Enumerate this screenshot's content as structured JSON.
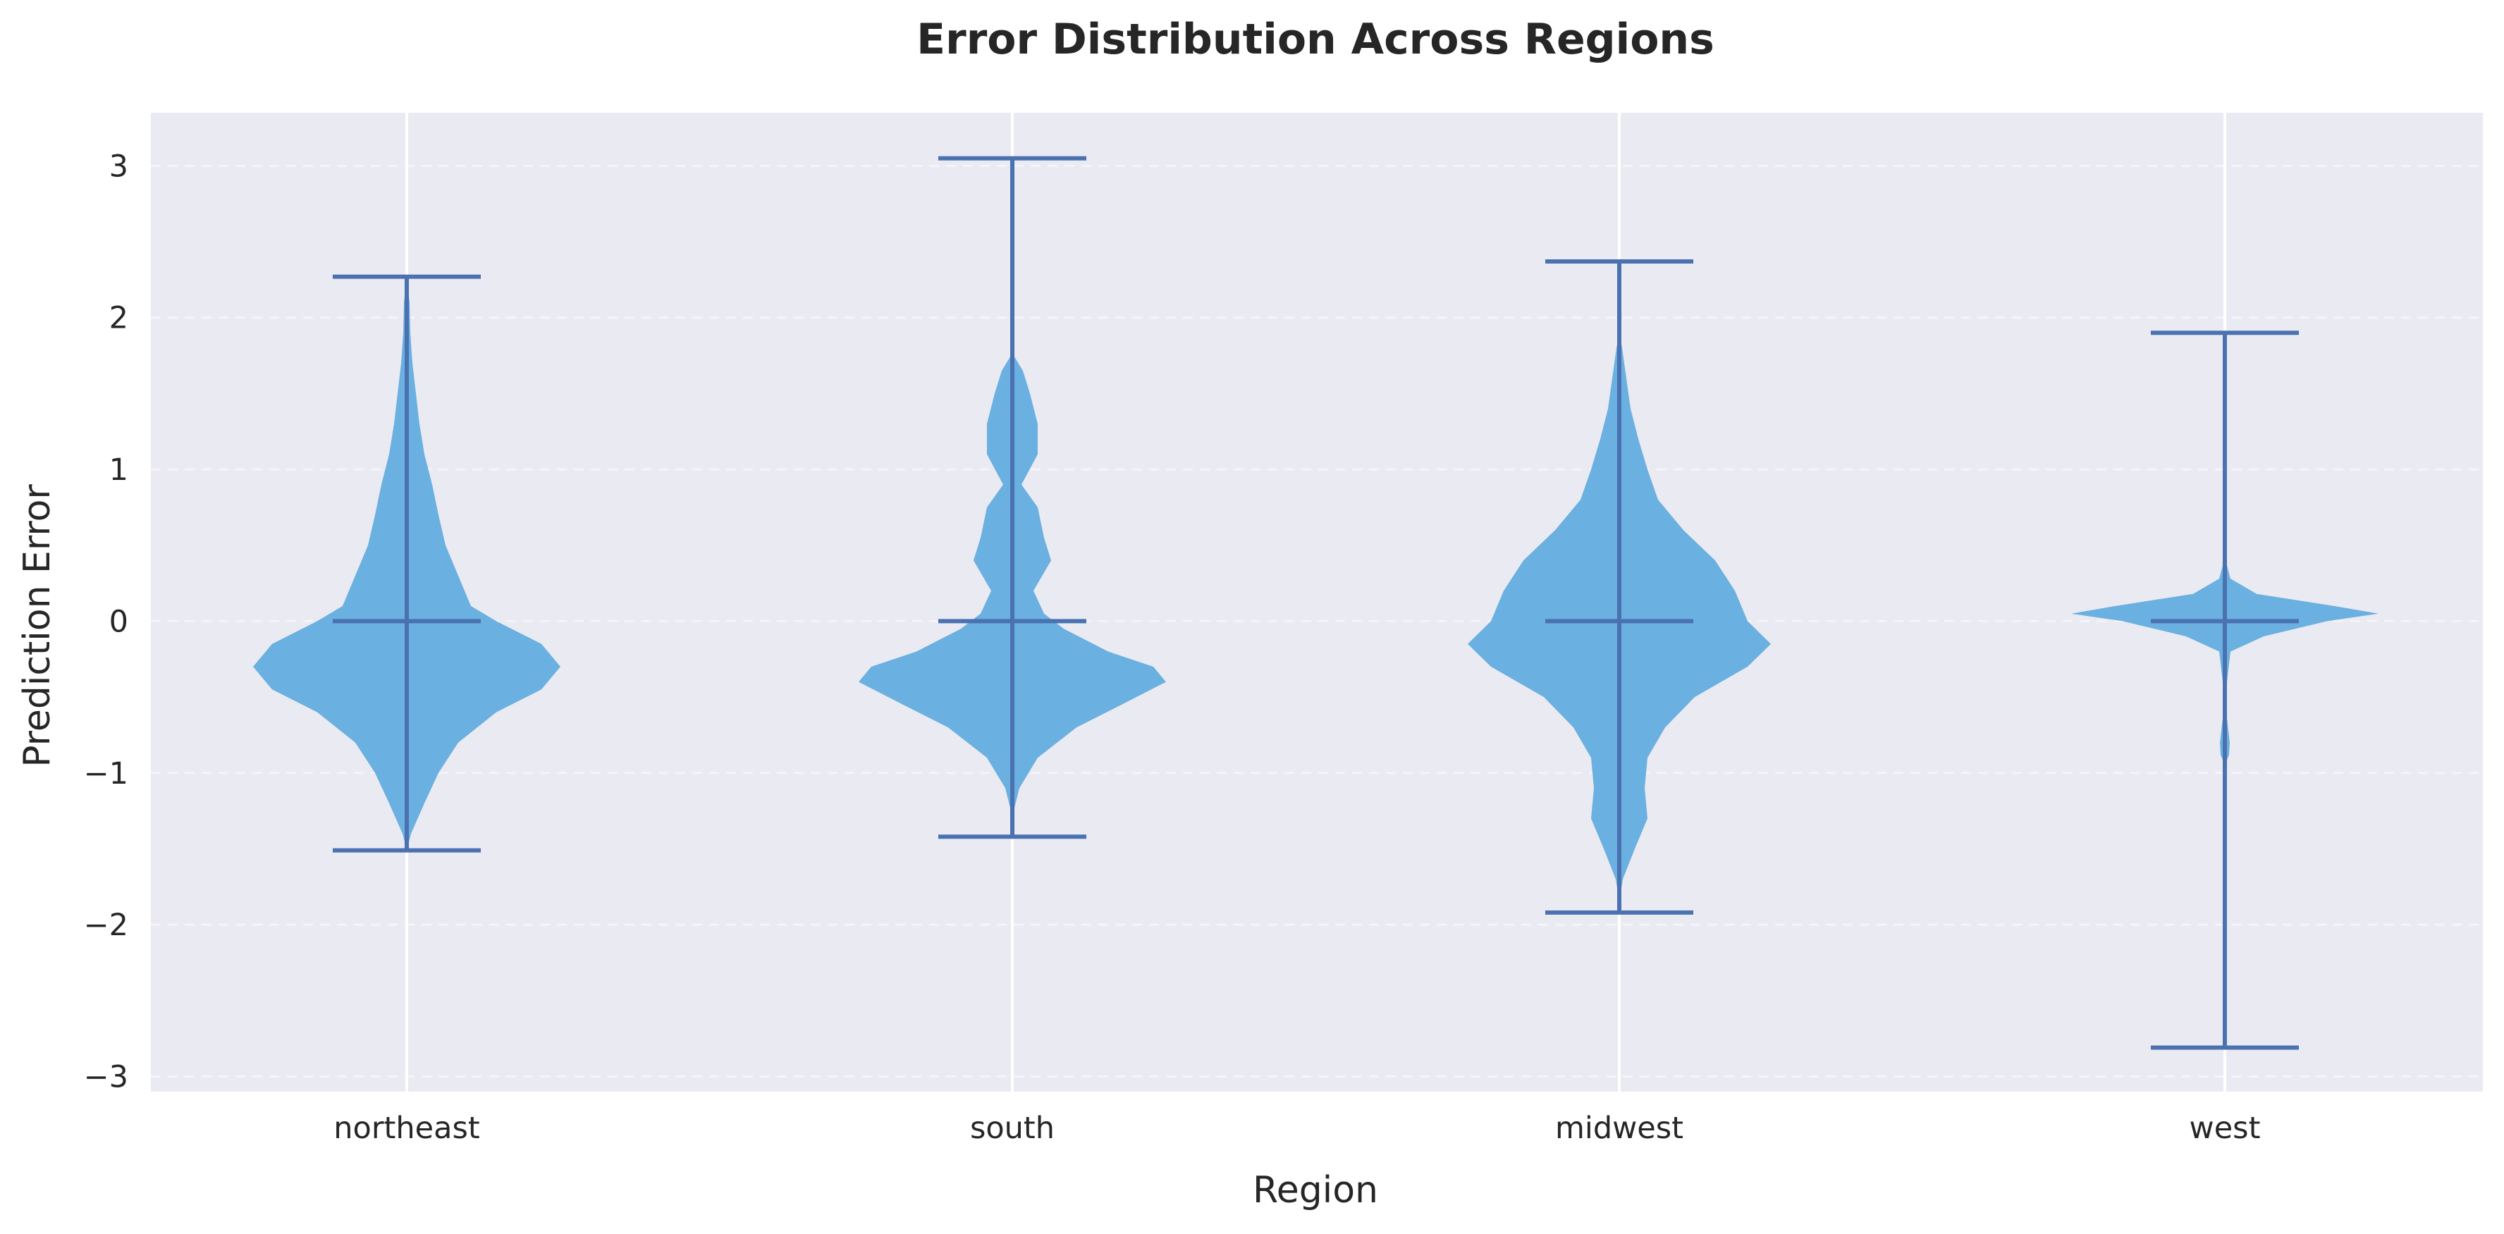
{
  "chart_data": {
    "type": "violin",
    "title": "Error Distribution Across Regions",
    "xlabel": "Region",
    "ylabel": "Prediction Error",
    "ylim": [
      -3.1,
      3.35
    ],
    "yticks": [
      3,
      2,
      1,
      0,
      -1,
      -2,
      -3
    ],
    "ytick_labels": [
      "3",
      "2",
      "1",
      "0",
      "−1",
      "−2",
      "−3"
    ],
    "grid": true,
    "categories": [
      "northeast",
      "south",
      "midwest",
      "west"
    ],
    "colors": {
      "background": "#eaeaf2",
      "violin_fill": "#6ab0e0",
      "line": "#4a72b0",
      "grid_major": "#ffffff",
      "grid_dashed": "#f4f4f9"
    },
    "series": [
      {
        "category": "northeast",
        "min": -1.51,
        "max": 2.27,
        "median": 0.0,
        "density": [
          [
            -1.51,
            0.0
          ],
          [
            -1.4,
            0.06
          ],
          [
            -1.2,
            0.25
          ],
          [
            -1.0,
            0.45
          ],
          [
            -0.8,
            0.73
          ],
          [
            -0.6,
            1.27
          ],
          [
            -0.45,
            1.91
          ],
          [
            -0.3,
            2.18
          ],
          [
            -0.15,
            1.91
          ],
          [
            0.0,
            1.27
          ],
          [
            0.1,
            0.91
          ],
          [
            0.3,
            0.73
          ],
          [
            0.5,
            0.55
          ],
          [
            0.7,
            0.45
          ],
          [
            0.9,
            0.36
          ],
          [
            1.1,
            0.25
          ],
          [
            1.3,
            0.18
          ],
          [
            1.5,
            0.13
          ],
          [
            1.7,
            0.08
          ],
          [
            1.9,
            0.05
          ],
          [
            2.1,
            0.04
          ],
          [
            2.27,
            0.0
          ]
        ]
      },
      {
        "category": "south",
        "min": -1.42,
        "max": 3.05,
        "median": 0.0,
        "density": [
          [
            -1.42,
            0.0
          ],
          [
            -1.25,
            0.02
          ],
          [
            -1.1,
            0.1
          ],
          [
            -0.9,
            0.36
          ],
          [
            -0.7,
            0.91
          ],
          [
            -0.55,
            1.55
          ],
          [
            -0.4,
            2.18
          ],
          [
            -0.3,
            2.0
          ],
          [
            -0.2,
            1.36
          ],
          [
            -0.05,
            0.73
          ],
          [
            0.05,
            0.45
          ],
          [
            0.2,
            0.3
          ],
          [
            0.4,
            0.55
          ],
          [
            0.55,
            0.45
          ],
          [
            0.75,
            0.36
          ],
          [
            0.9,
            0.13
          ],
          [
            1.1,
            0.36
          ],
          [
            1.3,
            0.36
          ],
          [
            1.5,
            0.25
          ],
          [
            1.65,
            0.15
          ],
          [
            1.75,
            0.02
          ],
          [
            1.85,
            0.0
          ]
        ]
      },
      {
        "category": "midwest",
        "min": -1.92,
        "max": 2.37,
        "median": 0.0,
        "density": [
          [
            -1.85,
            0.0
          ],
          [
            -1.7,
            0.05
          ],
          [
            -1.5,
            0.22
          ],
          [
            -1.3,
            0.4
          ],
          [
            -1.1,
            0.36
          ],
          [
            -0.9,
            0.4
          ],
          [
            -0.7,
            0.65
          ],
          [
            -0.5,
            1.07
          ],
          [
            -0.3,
            1.82
          ],
          [
            -0.15,
            2.15
          ],
          [
            0.0,
            1.82
          ],
          [
            0.2,
            1.64
          ],
          [
            0.4,
            1.36
          ],
          [
            0.6,
            0.91
          ],
          [
            0.8,
            0.55
          ],
          [
            1.0,
            0.4
          ],
          [
            1.2,
            0.27
          ],
          [
            1.4,
            0.16
          ],
          [
            1.6,
            0.1
          ],
          [
            1.8,
            0.04
          ],
          [
            1.9,
            0.0
          ]
        ]
      },
      {
        "category": "west",
        "min": -2.81,
        "max": 1.9,
        "median": 0.0,
        "density": [
          [
            -0.95,
            0.0
          ],
          [
            -0.88,
            0.06
          ],
          [
            -0.8,
            0.07
          ],
          [
            -0.72,
            0.05
          ],
          [
            -0.6,
            0.02
          ],
          [
            -0.4,
            0.03
          ],
          [
            -0.2,
            0.08
          ],
          [
            -0.1,
            0.55
          ],
          [
            0.0,
            1.45
          ],
          [
            0.05,
            2.18
          ],
          [
            0.1,
            1.55
          ],
          [
            0.18,
            0.45
          ],
          [
            0.28,
            0.08
          ],
          [
            0.35,
            0.04
          ],
          [
            0.42,
            0.0
          ]
        ]
      }
    ]
  }
}
